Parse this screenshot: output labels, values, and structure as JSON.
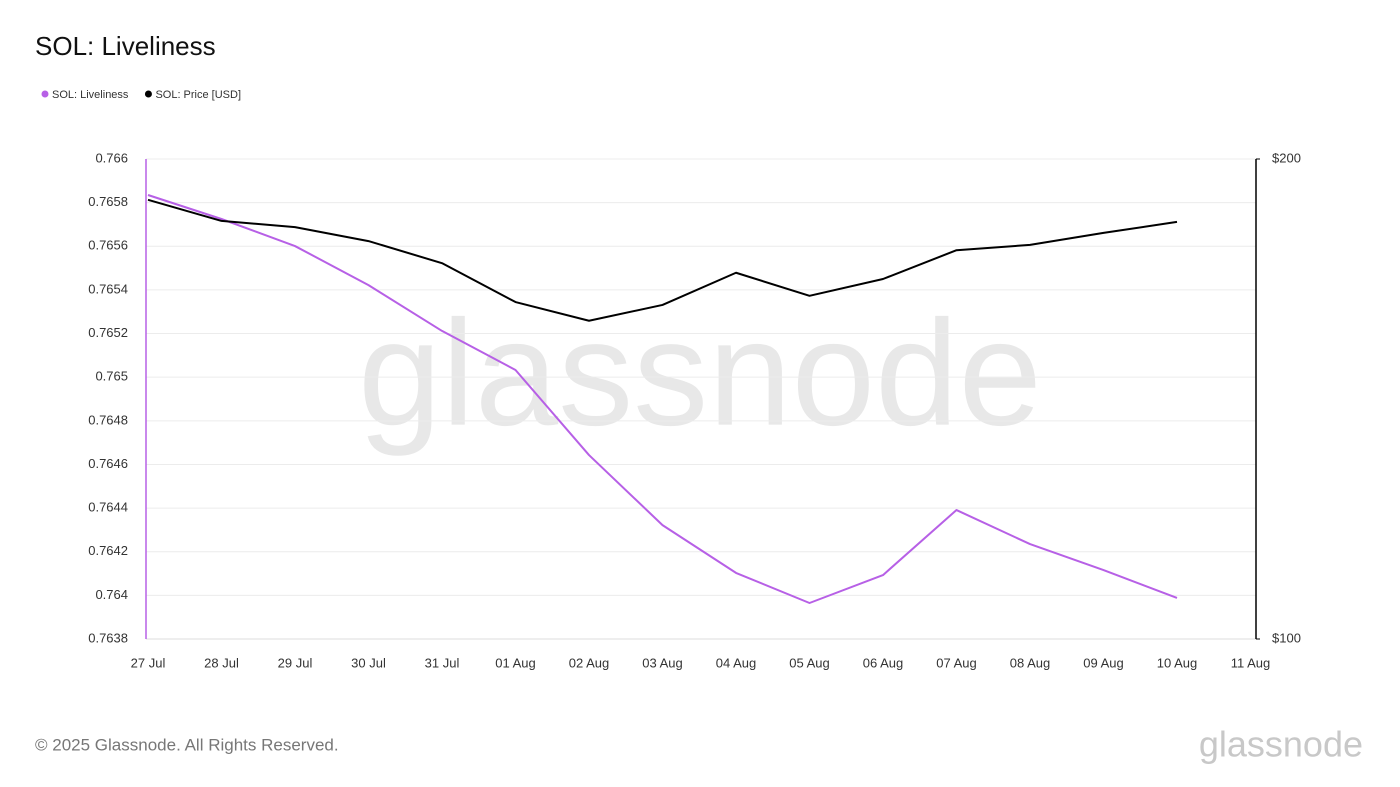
{
  "chart_data": {
    "type": "line",
    "title": "SOL: Liveliness",
    "categories": [
      "27 Jul",
      "28 Jul",
      "29 Jul",
      "30 Jul",
      "31 Jul",
      "01 Aug",
      "02 Aug",
      "03 Aug",
      "04 Aug",
      "05 Aug",
      "06 Aug",
      "07 Aug",
      "08 Aug",
      "09 Aug",
      "10 Aug",
      "11 Aug"
    ],
    "series": [
      {
        "name": "SOL: Liveliness",
        "color": "#b760e6",
        "values": [
          0.765835,
          0.765725,
          0.765601,
          0.765422,
          0.765212,
          0.765033,
          0.764643,
          0.764322,
          0.764103,
          0.763965,
          0.764093,
          0.764391,
          0.764235,
          0.764116,
          0.763988,
          null
        ]
      },
      {
        "name": "SOL: Price [USD]",
        "color": "#000000",
        "axis": "y2",
        "values": [
          191.5,
          187.1,
          185.8,
          182.9,
          178.3,
          170.2,
          166.3,
          169.6,
          176.3,
          171.5,
          175.0,
          181.0,
          182.1,
          184.6,
          186.9,
          null
        ]
      }
    ],
    "ylim": [
      0.7638,
      0.766
    ],
    "yticks": [
      0.7638,
      0.764,
      0.7642,
      0.7644,
      0.7646,
      0.7648,
      0.765,
      0.7652,
      0.7654,
      0.7656,
      0.7658,
      0.766
    ],
    "y2lim": [
      100,
      200
    ],
    "y2ticks": [
      {
        "value": 100,
        "label": "$100"
      },
      {
        "value": 200,
        "label": "$200"
      }
    ],
    "grid": true,
    "legend": "top-left",
    "watermark": "glassnode",
    "footer": "© 2025 Glassnode. All Rights Reserved.",
    "logo": "glassnode"
  }
}
